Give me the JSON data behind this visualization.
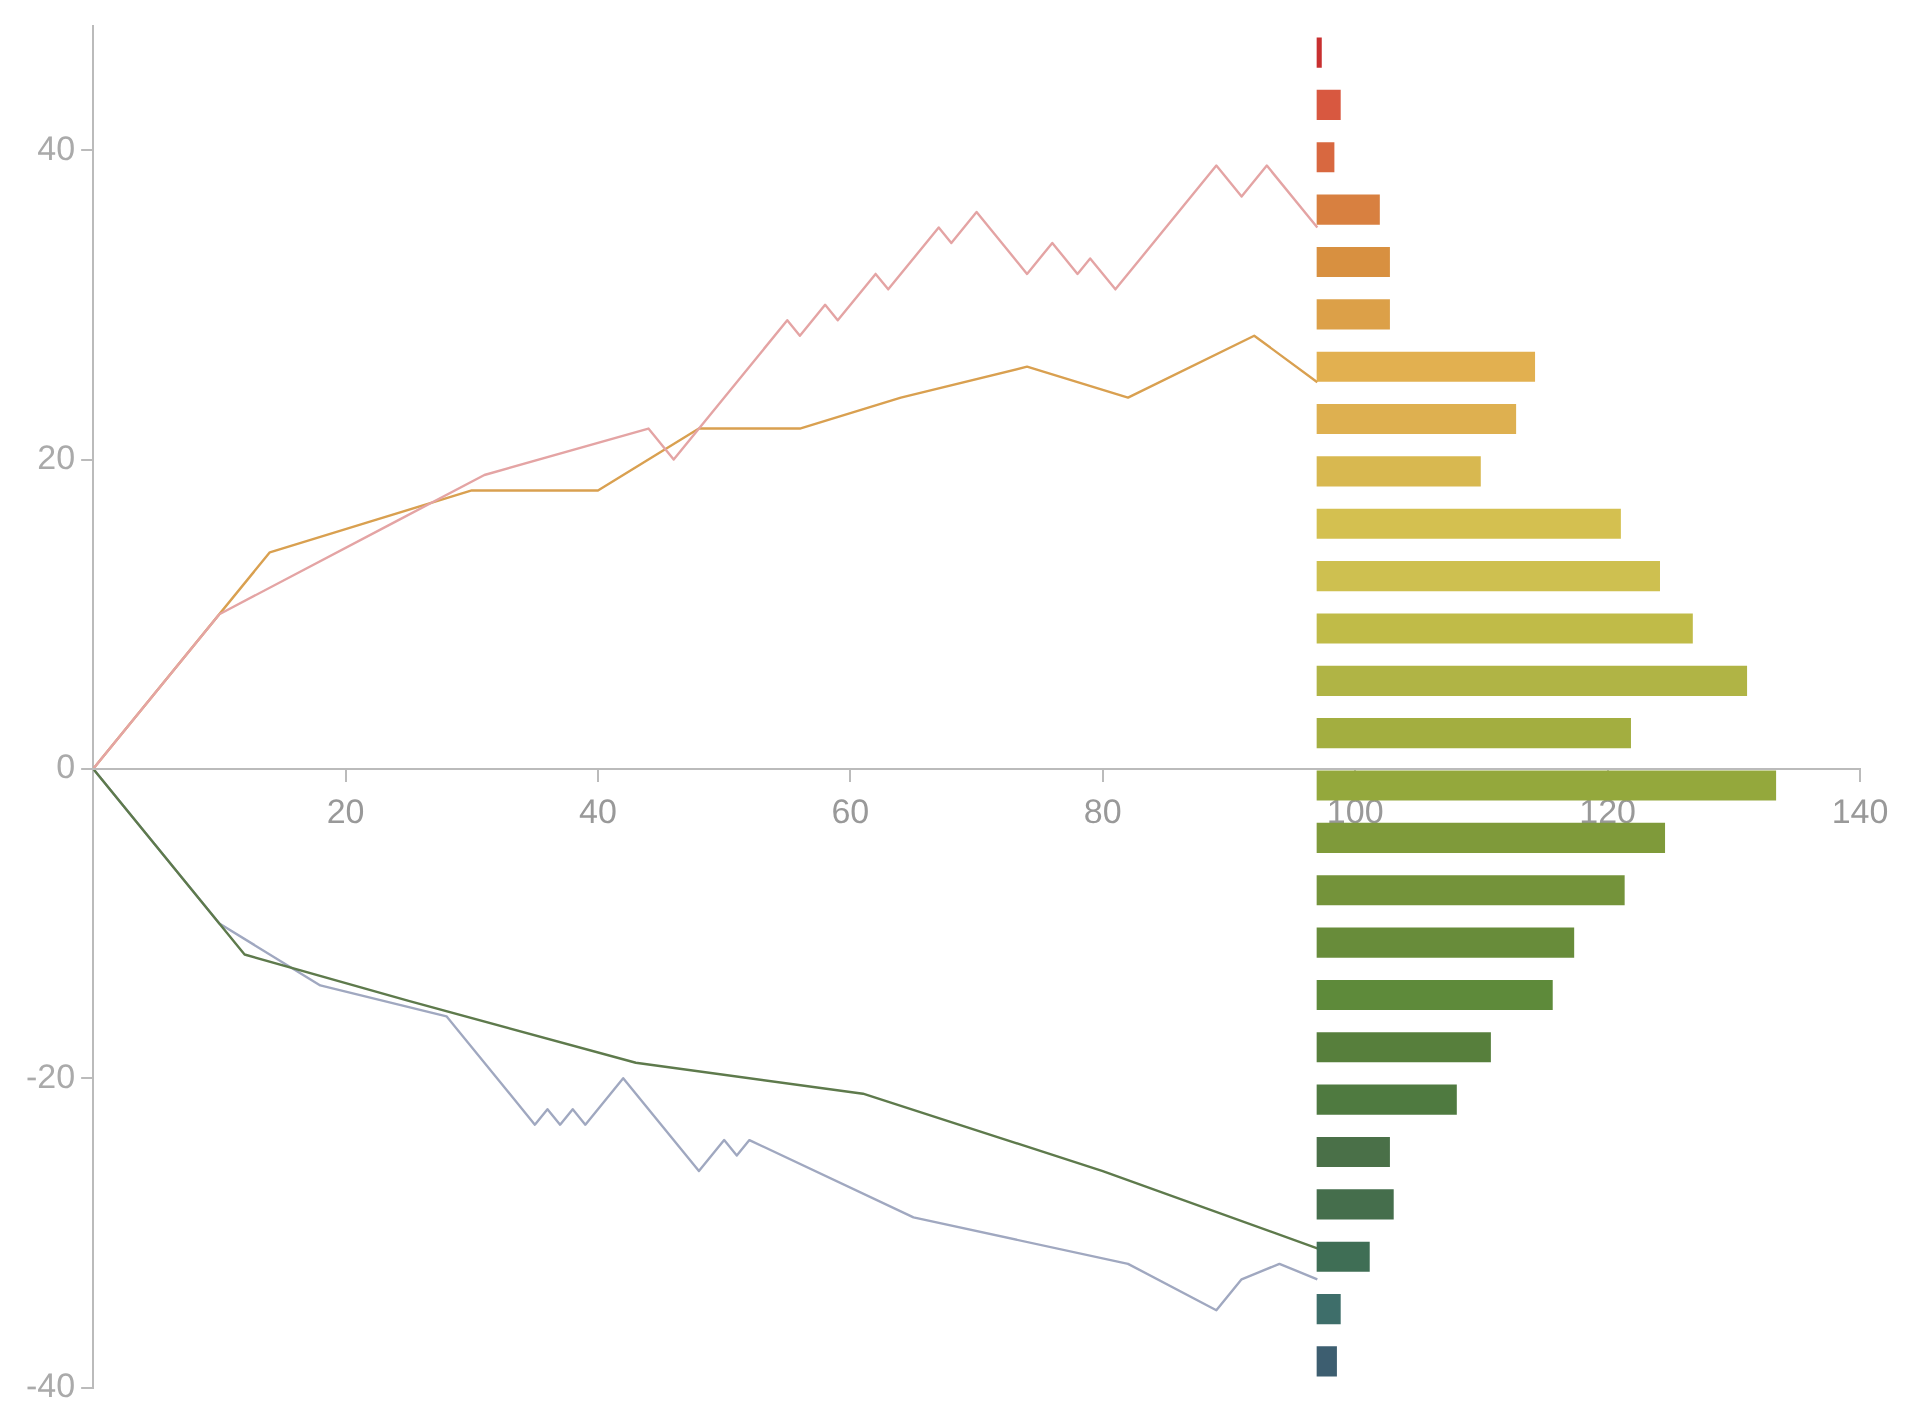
{
  "chart_data": [
    {
      "type": "line",
      "xlim": [
        0,
        140
      ],
      "ylim": [
        -40,
        48
      ],
      "xticks": [
        20,
        40,
        60,
        80,
        100,
        120,
        140
      ],
      "yticks": [
        -40,
        -20,
        0,
        20,
        40
      ],
      "tick_labels": "y",
      "grid": false,
      "marker": "none",
      "line_style": "solid",
      "series": [
        {
          "color": "#e4a4a4",
          "x": [
            0,
            10,
            24,
            31,
            44,
            46,
            55,
            56,
            58,
            59,
            62,
            63,
            67,
            68,
            70,
            74,
            76,
            78,
            79,
            81,
            89,
            91,
            93,
            97
          ],
          "values": [
            0,
            10,
            16,
            19,
            22,
            20,
            29,
            28,
            30,
            29,
            32,
            31,
            35,
            34,
            36,
            32,
            34,
            32,
            33,
            31,
            39,
            37,
            39,
            35
          ]
        },
        {
          "color": "#d9a050",
          "x": [
            0,
            14,
            22,
            30,
            40,
            48,
            56,
            64,
            74,
            82,
            92,
            97
          ],
          "values": [
            0,
            14,
            16,
            18,
            18,
            22,
            22,
            24,
            26,
            24,
            28,
            25
          ]
        },
        {
          "color": "#5e7a4c",
          "x": [
            0,
            12,
            25,
            43,
            61,
            80,
            97
          ],
          "values": [
            0,
            -12,
            -15,
            -19,
            -21,
            -26,
            -31
          ]
        },
        {
          "color": "#a0a8c0",
          "x": [
            0,
            10,
            18,
            28,
            35,
            36,
            37,
            38,
            39,
            42,
            48,
            50,
            51,
            52,
            65,
            82,
            89,
            91,
            94,
            97
          ],
          "values": [
            0,
            -10,
            -14,
            -16,
            -23,
            -22,
            -23,
            -22,
            -23,
            -20,
            -26,
            -24,
            -25,
            -24,
            -29,
            -32,
            -35,
            -33,
            -32,
            -33
          ]
        }
      ]
    },
    {
      "type": "bar",
      "orientation": "horizontal",
      "xlim": [
        0,
        140
      ],
      "xticks": [
        20,
        40,
        60,
        80,
        100,
        120,
        140
      ],
      "tick_labels": "x",
      "categories": [
        null,
        null,
        null,
        null,
        null,
        null,
        null,
        null,
        null,
        null,
        null,
        null,
        null,
        null,
        null,
        null,
        null,
        null,
        null,
        null,
        null,
        null,
        null,
        null,
        null,
        null
      ],
      "base": [
        97,
        97,
        97,
        97,
        97,
        97,
        97,
        97,
        97,
        97,
        97,
        97,
        97,
        97,
        97,
        97,
        97,
        97,
        97,
        97,
        97,
        97,
        97,
        97,
        97,
        97
      ],
      "values": [
        0.3,
        1.8,
        1.3,
        4.9,
        5.7,
        5.7,
        17.2,
        15.7,
        12.9,
        24,
        27.1,
        29.7,
        34,
        24.8,
        36.3,
        27.5,
        24.3,
        20.3,
        18.6,
        13.7,
        11,
        5.7,
        6.0,
        4.1,
        1.8,
        1.5
      ],
      "colors": [
        "#c83030",
        "#d85840",
        "#d86840",
        "#d88040",
        "#d89040",
        "#dca048",
        "#e2b050",
        "#deb050",
        "#d8b850",
        "#d4c050",
        "#cec050",
        "#c0bb48",
        "#b0b445",
        "#a3ae40",
        "#94a83c",
        "#7f9a3a",
        "#74933a",
        "#688c3a",
        "#5e8a3a",
        "#577f3c",
        "#4f7a40",
        "#4a7048",
        "#456e4c",
        "#3f6e55",
        "#3e6e6a",
        "#3d5e70"
      ]
    }
  ]
}
